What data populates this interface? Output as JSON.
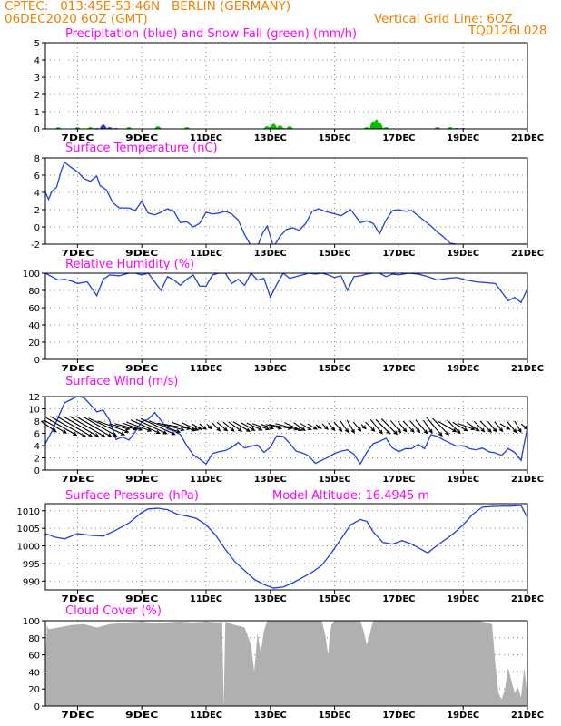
{
  "header": {
    "line1": "CPTEC:   013:45E-53:46N   BERLIN (GERMANY)",
    "line2": "06DEC2020 6OZ (GMT)",
    "grid_note": "Vertical Grid Line: 6OZ",
    "code": "TQ0126L028"
  },
  "colors": {
    "header": "#f08000",
    "title": "#ff00ff",
    "line": "#1f3fe0",
    "snow": "#00c000",
    "cloud": "#b0b0b0"
  },
  "chart_data": [
    {
      "type": "bar",
      "title": "Precipitation (blue) and Snow Fall (green) (mm/h)",
      "ylim": [
        0,
        5
      ],
      "yticks": [
        0,
        1,
        2,
        3,
        4,
        5
      ],
      "xticks": [
        "7DEC",
        "9DEC",
        "11DEC",
        "13DEC",
        "15DEC",
        "17DEC",
        "19DEC",
        "21DEC"
      ],
      "series": [
        {
          "name": "Precipitation",
          "x": [
            7.6,
            7.8,
            8.0,
            8.2,
            13.0,
            13.4,
            16.2,
            16.3,
            18.8,
            19.0
          ],
          "values": [
            0.05,
            0.25,
            0.1,
            0.05,
            0.1,
            0.05,
            0.1,
            0.05,
            0.05,
            0.05
          ]
        },
        {
          "name": "Snow Fall",
          "x": [
            6.4,
            7.0,
            7.4,
            8.6,
            9.5,
            10.4,
            12.9,
            13.1,
            13.3,
            13.6,
            16.0,
            16.2,
            16.3,
            16.4,
            16.6,
            18.2,
            18.6
          ],
          "values": [
            0.1,
            0.1,
            0.1,
            0.1,
            0.15,
            0.1,
            0.15,
            0.3,
            0.2,
            0.15,
            0.1,
            0.45,
            0.55,
            0.35,
            0.1,
            0.1,
            0.1
          ]
        }
      ]
    },
    {
      "type": "line",
      "title": "Surface Temperature (nC)",
      "ylim": [
        -2,
        8
      ],
      "yticks": [
        -2,
        0,
        2,
        4,
        6,
        8
      ],
      "xticks": [
        "7DEC",
        "9DEC",
        "11DEC",
        "13DEC",
        "15DEC",
        "17DEC",
        "19DEC",
        "21DEC"
      ],
      "x": [
        6.0,
        6.1,
        6.2,
        6.35,
        6.5,
        6.6,
        6.8,
        7.0,
        7.2,
        7.4,
        7.6,
        7.7,
        7.9,
        8.1,
        8.3,
        8.6,
        8.8,
        9.0,
        9.2,
        9.4,
        9.6,
        9.8,
        10.0,
        10.2,
        10.4,
        10.6,
        10.8,
        11.0,
        11.2,
        11.4,
        11.6,
        11.8,
        12.0,
        12.2,
        12.4,
        12.6,
        12.75,
        12.9,
        13.1,
        13.3,
        13.5,
        13.7,
        13.9,
        14.1,
        14.3,
        14.5,
        14.7,
        14.9,
        15.2,
        15.5,
        15.8,
        16.0,
        16.2,
        16.4,
        16.6,
        16.8,
        17.0,
        17.2,
        17.4,
        17.6,
        17.8,
        18.0,
        18.2,
        18.4,
        18.6,
        18.8,
        19.0,
        20.0,
        21.0
      ],
      "values": [
        4.0,
        3.2,
        4.1,
        4.6,
        6.6,
        7.5,
        6.9,
        6.4,
        5.6,
        5.3,
        5.9,
        4.8,
        4.3,
        2.8,
        2.2,
        2.2,
        1.9,
        3.0,
        1.6,
        1.4,
        1.7,
        2.1,
        1.8,
        0.5,
        0.6,
        0.0,
        0.4,
        1.7,
        1.5,
        1.6,
        1.8,
        1.5,
        0.8,
        -0.9,
        -2.2,
        -2.3,
        -0.8,
        0.1,
        -2.3,
        -1.1,
        -0.3,
        -0.1,
        -0.4,
        0.4,
        1.8,
        2.1,
        1.8,
        1.6,
        1.3,
        2.0,
        0.5,
        0.7,
        0.4,
        -0.8,
        0.8,
        1.9,
        2.0,
        1.8,
        1.9,
        1.3,
        0.7,
        0.1,
        -0.6,
        -1.2,
        -1.9,
        -2.0,
        -2.0,
        -2.0,
        -2.0
      ]
    },
    {
      "type": "line",
      "title": "Relative Humidity (%)",
      "ylim": [
        0,
        100
      ],
      "yticks": [
        0,
        20,
        40,
        60,
        80,
        100
      ],
      "xticks": [
        "7DEC",
        "9DEC",
        "11DEC",
        "13DEC",
        "15DEC",
        "17DEC",
        "19DEC",
        "21DEC"
      ],
      "x": [
        6.0,
        6.2,
        6.4,
        6.6,
        6.8,
        7.0,
        7.3,
        7.6,
        7.8,
        8.0,
        8.3,
        8.6,
        8.8,
        9.0,
        9.2,
        9.4,
        9.6,
        9.8,
        10.0,
        10.2,
        10.4,
        10.6,
        10.8,
        11.0,
        11.2,
        11.4,
        11.6,
        11.8,
        12.0,
        12.2,
        12.4,
        12.6,
        12.8,
        13.0,
        13.2,
        13.4,
        13.6,
        13.8,
        14.0,
        14.2,
        14.4,
        14.6,
        14.8,
        15.0,
        15.2,
        15.4,
        15.6,
        15.8,
        16.0,
        16.2,
        16.4,
        16.6,
        16.8,
        17.0,
        17.3,
        17.6,
        17.9,
        18.2,
        18.5,
        18.8,
        19.1,
        19.4,
        19.7,
        20.0,
        20.2,
        20.4,
        20.6,
        20.8,
        21.0
      ],
      "values": [
        100,
        96,
        92,
        93,
        91,
        88,
        90,
        74,
        93,
        98,
        97,
        100,
        100,
        98,
        100,
        90,
        80,
        96,
        92,
        86,
        93,
        98,
        85,
        85,
        98,
        100,
        100,
        88,
        93,
        86,
        100,
        92,
        94,
        72,
        87,
        100,
        94,
        96,
        98,
        100,
        99,
        100,
        98,
        95,
        97,
        80,
        96,
        97,
        99,
        100,
        100,
        96,
        99,
        98,
        100,
        99,
        96,
        92,
        94,
        95,
        92,
        90,
        89,
        88,
        78,
        68,
        72,
        66,
        82
      ]
    },
    {
      "type": "line",
      "title": "Surface Wind (m/s)",
      "ylim": [
        0,
        12
      ],
      "yticks": [
        0,
        2,
        4,
        6,
        8,
        10,
        12
      ],
      "xticks": [
        "7DEC",
        "9DEC",
        "11DEC",
        "13DEC",
        "15DEC",
        "17DEC",
        "19DEC",
        "21DEC"
      ],
      "x": [
        6.0,
        6.2,
        6.4,
        6.6,
        6.8,
        7.0,
        7.2,
        7.4,
        7.6,
        7.8,
        8.0,
        8.2,
        8.4,
        8.6,
        8.8,
        9.0,
        9.2,
        9.4,
        9.6,
        9.8,
        10.0,
        10.2,
        10.4,
        10.6,
        10.8,
        11.0,
        11.2,
        11.4,
        11.6,
        11.8,
        12.0,
        12.2,
        12.4,
        12.6,
        12.8,
        13.0,
        13.2,
        13.4,
        13.6,
        13.8,
        14.0,
        14.2,
        14.4,
        14.6,
        14.8,
        15.0,
        15.2,
        15.4,
        15.6,
        15.8,
        16.0,
        16.2,
        16.4,
        16.6,
        16.8,
        17.0,
        17.2,
        17.4,
        17.6,
        17.8,
        18.0,
        18.2,
        18.4,
        18.6,
        18.8,
        19.0,
        19.2,
        19.4,
        19.6,
        19.8,
        20.0,
        20.2,
        20.4,
        20.6,
        20.8,
        21.0
      ],
      "values": [
        4.3,
        6.3,
        8.6,
        11.0,
        11.5,
        12.1,
        11.8,
        10.7,
        9.5,
        9.8,
        8.1,
        5.0,
        5.4,
        4.9,
        6.3,
        7.9,
        8.3,
        9.4,
        8.1,
        6.7,
        6.4,
        5.8,
        4.0,
        2.5,
        1.8,
        1.0,
        2.7,
        3.0,
        3.2,
        3.7,
        4.5,
        3.6,
        3.9,
        4.1,
        2.9,
        3.7,
        5.6,
        5.5,
        4.4,
        3.1,
        2.8,
        2.3,
        1.1,
        1.6,
        2.1,
        2.7,
        3.1,
        3.3,
        2.6,
        1.0,
        2.9,
        4.3,
        4.7,
        5.2,
        3.6,
        3.0,
        3.5,
        3.5,
        4.2,
        3.5,
        5.8,
        5.5,
        4.9,
        4.4,
        3.9,
        4.0,
        3.5,
        3.3,
        3.6,
        3.0,
        2.8,
        2.4,
        3.5,
        2.9,
        1.6,
        7.0
      ]
    },
    {
      "type": "line",
      "title": "Surface Pressure (hPa)",
      "subtitle": "Model Altitude: 16.4945 m",
      "ylim": [
        987.5,
        1012
      ],
      "yticks": [
        990,
        995,
        1000,
        1005,
        1010
      ],
      "xticks": [
        "7DEC",
        "9DEC",
        "11DEC",
        "13DEC",
        "15DEC",
        "17DEC",
        "19DEC",
        "21DEC"
      ],
      "x": [
        6.0,
        6.3,
        6.6,
        7.0,
        7.4,
        7.8,
        8.2,
        8.6,
        9.0,
        9.2,
        9.5,
        9.8,
        10.1,
        10.4,
        10.7,
        11.0,
        11.3,
        11.6,
        11.9,
        12.2,
        12.5,
        12.8,
        13.1,
        13.4,
        13.7,
        14.0,
        14.3,
        14.6,
        14.9,
        15.2,
        15.5,
        15.8,
        16.0,
        16.2,
        16.5,
        16.8,
        17.1,
        17.4,
        17.7,
        17.9,
        18.1,
        18.4,
        18.7,
        19.0,
        19.3,
        19.6,
        19.9,
        20.2,
        20.5,
        20.8,
        21.0
      ],
      "values": [
        1003.5,
        1002.5,
        1002.0,
        1003.5,
        1003.0,
        1002.8,
        1004.5,
        1006.5,
        1009.5,
        1010.5,
        1010.7,
        1010.3,
        1009.0,
        1008.5,
        1007.8,
        1006.0,
        1003.0,
        999.0,
        995.5,
        993.0,
        990.5,
        989.0,
        988.0,
        988.3,
        989.5,
        991.0,
        992.5,
        994.5,
        998.0,
        1002.0,
        1006.0,
        1007.5,
        1007.0,
        1004.0,
        1001.0,
        1000.5,
        1001.5,
        1000.5,
        999.0,
        998.0,
        999.5,
        1001.5,
        1003.5,
        1006.0,
        1009.0,
        1011.0,
        1011.2,
        1011.3,
        1011.3,
        1011.5,
        1008.0
      ]
    },
    {
      "type": "area",
      "title": "Cloud Cover (%)",
      "ylim": [
        0,
        100
      ],
      "yticks": [
        0,
        20,
        40,
        60,
        80,
        100
      ],
      "xticks": [
        "7DEC",
        "9DEC",
        "11DEC",
        "13DEC",
        "15DEC",
        "17DEC",
        "19DEC",
        "21DEC"
      ],
      "x": [
        6.0,
        6.05,
        6.1,
        6.4,
        6.8,
        7.2,
        7.6,
        8.0,
        8.6,
        9.0,
        9.4,
        9.8,
        10.2,
        10.6,
        11.0,
        11.4,
        11.5,
        11.55,
        11.6,
        11.8,
        12.2,
        12.4,
        12.5,
        12.6,
        12.7,
        12.8,
        12.9,
        13.0,
        14.0,
        14.6,
        14.7,
        14.8,
        14.85,
        14.9,
        15.0,
        15.5,
        15.8,
        15.9,
        16.0,
        16.1,
        16.2,
        16.5,
        17.5,
        18.5,
        19.5,
        19.9,
        20.0,
        20.1,
        20.2,
        20.3,
        20.4,
        20.5,
        20.6,
        20.7,
        20.8,
        20.9,
        21.0
      ],
      "values": [
        50,
        95,
        90,
        92,
        95,
        96,
        92,
        96,
        98,
        99,
        97,
        98,
        99,
        98,
        99,
        98,
        99,
        0,
        99,
        96,
        92,
        72,
        40,
        86,
        62,
        88,
        100,
        100,
        100,
        100,
        85,
        60,
        82,
        95,
        100,
        100,
        100,
        88,
        72,
        85,
        100,
        100,
        100,
        100,
        100,
        96,
        50,
        15,
        8,
        20,
        45,
        30,
        15,
        22,
        10,
        45,
        12
      ]
    }
  ],
  "wind_barbs": {
    "x": [
      6.1,
      6.3,
      6.5,
      6.7,
      6.9,
      7.1,
      7.3,
      7.5,
      7.7,
      7.9,
      8.1,
      8.3,
      8.5,
      8.7,
      8.9,
      9.1,
      9.3,
      9.5,
      9.7,
      9.9,
      10.1,
      10.3,
      10.5,
      10.7,
      10.9,
      11.1,
      11.3,
      11.5,
      11.7,
      11.9,
      12.1,
      12.3,
      12.5,
      12.7,
      12.9,
      13.1,
      13.3,
      13.5,
      13.7,
      13.9,
      14.1,
      14.3,
      14.5,
      14.7,
      14.9,
      15.1,
      15.3,
      15.5,
      15.7,
      15.9,
      16.1,
      16.3,
      16.5,
      16.7,
      16.9,
      17.1,
      17.3,
      17.5,
      17.7,
      17.9,
      18.1,
      18.3,
      18.5,
      18.7,
      18.9,
      19.1,
      19.3,
      19.5,
      19.7,
      19.9,
      20.1,
      20.3,
      20.5,
      20.7,
      20.9
    ],
    "direction_deg": [
      305,
      300,
      300,
      300,
      300,
      300,
      300,
      300,
      300,
      295,
      290,
      285,
      285,
      290,
      290,
      295,
      295,
      295,
      290,
      285,
      280,
      290,
      295,
      300,
      310,
      315,
      315,
      310,
      310,
      305,
      300,
      300,
      295,
      290,
      290,
      285,
      280,
      285,
      295,
      305,
      300,
      300,
      305,
      315,
      320,
      320,
      325,
      330,
      320,
      315,
      315,
      320,
      315,
      315,
      320,
      320,
      315,
      320,
      320,
      325,
      320,
      315,
      300,
      315,
      300,
      290,
      305,
      315,
      315,
      320,
      320,
      300,
      320,
      330,
      310
    ]
  }
}
